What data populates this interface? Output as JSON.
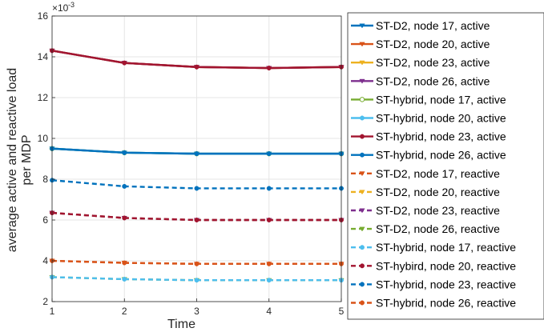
{
  "chart_data": {
    "type": "line",
    "x": [
      1,
      2,
      3,
      4,
      5
    ],
    "xlabel": "Time",
    "ylabel": "average active and reactive load per MDP",
    "y_exponent_label": "×10",
    "y_exponent_value": "-3",
    "xlim": [
      1,
      5
    ],
    "ylim": [
      2,
      16
    ],
    "xticks": [
      "1",
      "2",
      "3",
      "4",
      "5"
    ],
    "yticks": [
      "2",
      "4",
      "6",
      "8",
      "10",
      "12",
      "14",
      "16"
    ],
    "grid": true,
    "legend_position": "outside-right",
    "series": [
      {
        "name": "ST-D2, node 17, active",
        "values": [
          9.5,
          9.3,
          9.25,
          9.25,
          9.25
        ],
        "color": "#0072BD",
        "dash": "solid",
        "marker": "triangle-down"
      },
      {
        "name": "ST-D2, node 20, active",
        "values": [
          14.3,
          13.7,
          13.5,
          13.45,
          13.5
        ],
        "color": "#D95319",
        "dash": "solid",
        "marker": "triangle-down"
      },
      {
        "name": "ST-D2, node 23, active",
        "values": [
          14.3,
          13.7,
          13.5,
          13.45,
          13.5
        ],
        "color": "#EDB120",
        "dash": "solid",
        "marker": "triangle-down"
      },
      {
        "name": "ST-D2, node 26, active",
        "values": [
          14.3,
          13.7,
          13.5,
          13.45,
          13.5
        ],
        "color": "#7E2F8E",
        "dash": "solid",
        "marker": "triangle-down"
      },
      {
        "name": "ST-hybrid, node 17, active",
        "values": [
          9.5,
          9.3,
          9.25,
          9.25,
          9.25
        ],
        "color": "#77AC30",
        "dash": "solid",
        "marker": "circle-open"
      },
      {
        "name": "ST-hybrid, node 20, active",
        "values": [
          9.5,
          9.3,
          9.25,
          9.25,
          9.25
        ],
        "color": "#4DBEEE",
        "dash": "solid",
        "marker": "circle"
      },
      {
        "name": "ST-hybrid, node 23, active",
        "values": [
          14.3,
          13.7,
          13.5,
          13.45,
          13.5
        ],
        "color": "#A2142F",
        "dash": "solid",
        "marker": "circle"
      },
      {
        "name": "ST-hybrid, node 26, active",
        "values": [
          9.5,
          9.3,
          9.25,
          9.25,
          9.25
        ],
        "color": "#0072BD",
        "dash": "solid",
        "marker": "circle"
      },
      {
        "name": "ST-D2, node 17, reactive",
        "values": [
          4.0,
          3.9,
          3.85,
          3.85,
          3.85
        ],
        "color": "#D95319",
        "dash": "dashed",
        "marker": "triangle-down"
      },
      {
        "name": "ST-D2, node 20, reactive",
        "values": [
          6.35,
          6.1,
          6.0,
          6.0,
          6.0
        ],
        "color": "#EDB120",
        "dash": "dashed",
        "marker": "triangle-down"
      },
      {
        "name": "ST-D2, node 23, reactive",
        "values": [
          6.35,
          6.1,
          6.0,
          6.0,
          6.0
        ],
        "color": "#7E2F8E",
        "dash": "dashed",
        "marker": "triangle-down"
      },
      {
        "name": "ST-D2, node 26, reactive",
        "values": [
          3.2,
          3.1,
          3.05,
          3.05,
          3.05
        ],
        "color": "#77AC30",
        "dash": "dashed",
        "marker": "triangle-down"
      },
      {
        "name": "ST-hybrid, node 17, reactive",
        "values": [
          3.2,
          3.1,
          3.05,
          3.05,
          3.05
        ],
        "color": "#4DBEEE",
        "dash": "dashed",
        "marker": "circle"
      },
      {
        "name": "ST-hybird, node 20, reactive",
        "values": [
          6.35,
          6.1,
          6.0,
          6.0,
          6.0
        ],
        "color": "#A2142F",
        "dash": "dashed",
        "marker": "circle"
      },
      {
        "name": "ST-hybrid, node 23, reactive",
        "values": [
          7.95,
          7.65,
          7.55,
          7.55,
          7.55
        ],
        "color": "#0072BD",
        "dash": "dashed",
        "marker": "circle"
      },
      {
        "name": "ST-hybrid, node 26, reactive",
        "values": [
          4.0,
          3.9,
          3.85,
          3.85,
          3.85
        ],
        "color": "#D95319",
        "dash": "dashed",
        "marker": "circle"
      }
    ]
  }
}
